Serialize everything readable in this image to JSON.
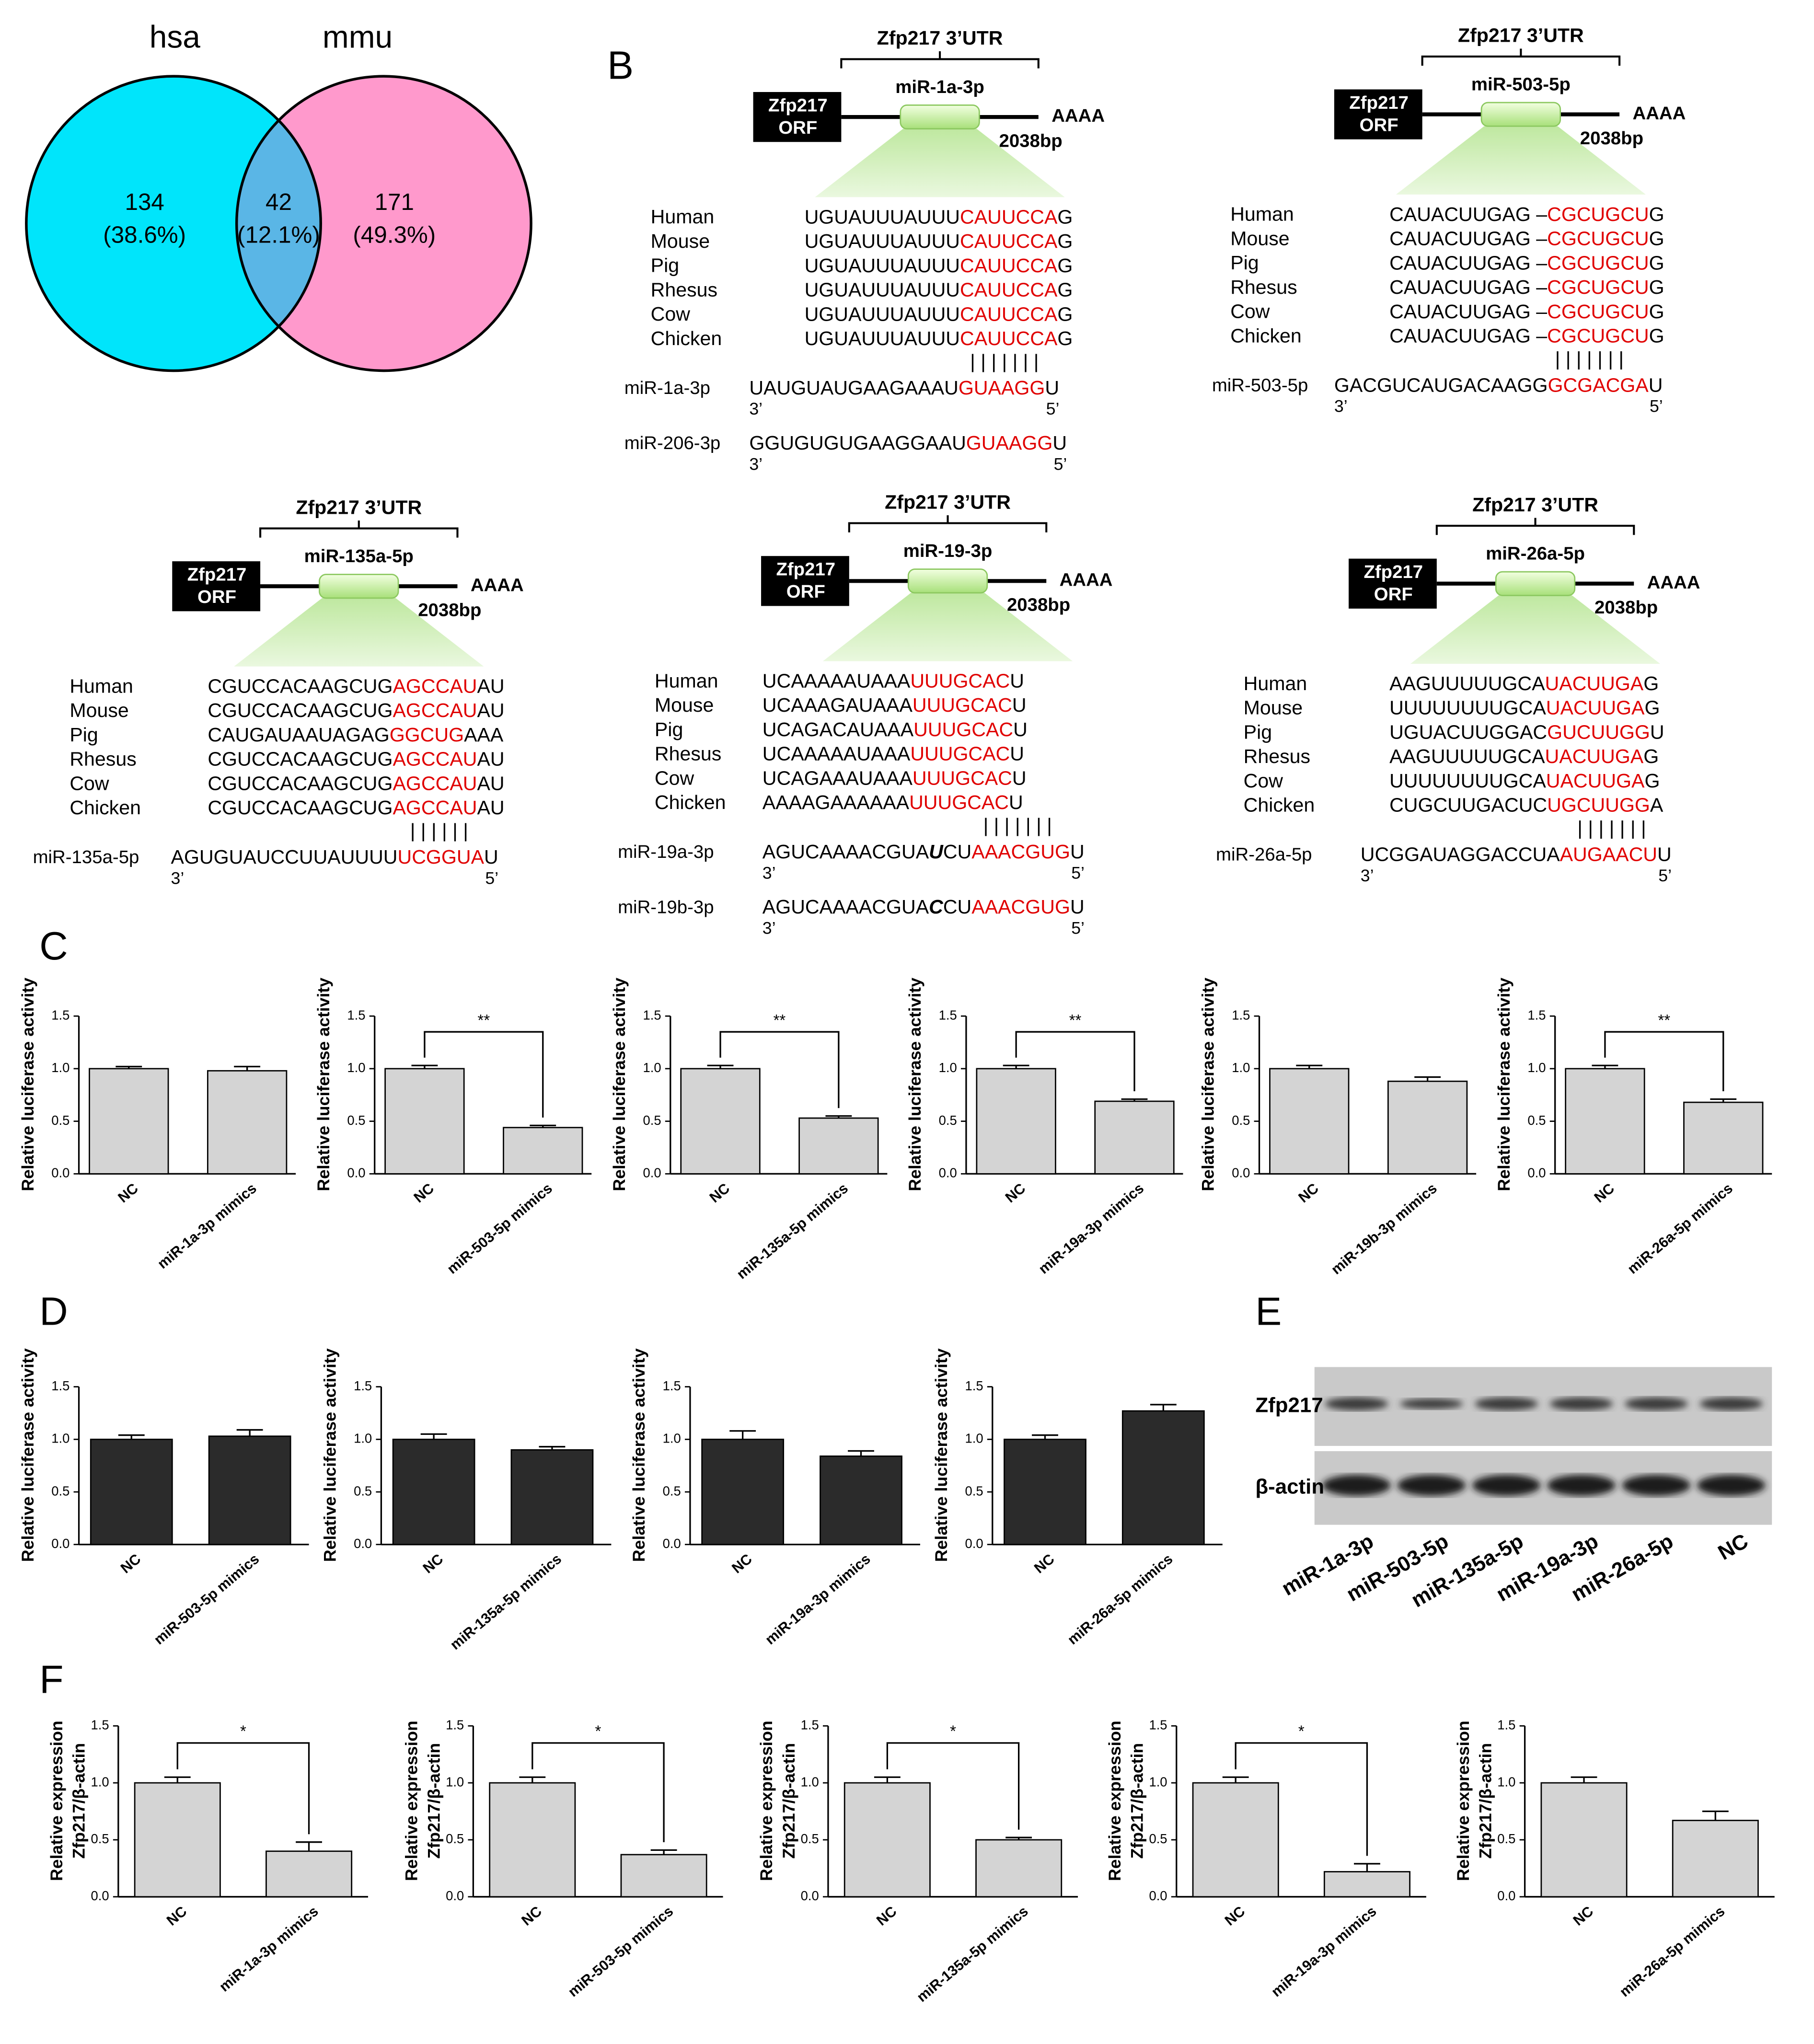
{
  "panel_labels": [
    "B",
    "C",
    "D",
    "E",
    "F"
  ],
  "venn": {
    "sets": [
      "hsa",
      "mmu"
    ],
    "counts": [
      "134",
      "42",
      "171"
    ],
    "percents": [
      "(38.6%)",
      "(12.1%)",
      "(49.3%)"
    ],
    "colors": [
      "#00e5fb",
      "#ff99cc",
      "#5ab6e6"
    ]
  },
  "diagrams": [
    {
      "utr": "Zfp217 3’UTR",
      "orf": [
        "Zfp217",
        "ORF"
      ],
      "site": "miR-1a-3p",
      "tail": "AAAA",
      "length": "2038bp",
      "species": [
        "Human",
        "Mouse",
        "Pig",
        "Rhesus",
        "Cow",
        "Chicken"
      ],
      "sequences": [
        {
          "parts": [
            "UGUAUUUAUUU",
            "CAUUCCA",
            "G"
          ],
          "styles": [
            "plain",
            "red",
            "plain"
          ]
        },
        {
          "parts": [
            "UGUAUUUAUUU",
            "CAUUCCA",
            "G"
          ],
          "styles": [
            "plain",
            "red",
            "plain"
          ]
        },
        {
          "parts": [
            "UGUAUUUAUUU",
            "CAUUCCA",
            "G"
          ],
          "styles": [
            "plain",
            "red",
            "plain"
          ]
        },
        {
          "parts": [
            "UGUAUUUAUUU",
            "CAUUCCA",
            "G"
          ],
          "styles": [
            "plain",
            "red",
            "plain"
          ]
        },
        {
          "parts": [
            "UGUAUUUAUUU",
            "CAUUCCA",
            "G"
          ],
          "styles": [
            "plain",
            "red",
            "plain"
          ]
        },
        {
          "parts": [
            "UGUAUUUAUUU",
            "CAUUCCA",
            "G"
          ],
          "styles": [
            "plain",
            "red",
            "plain"
          ]
        }
      ],
      "pairing": "| | | | | | |",
      "mirnas": [
        {
          "name": "miR-1a-3p",
          "parts": [
            "UAUGUAUGAAGAAAU",
            "GUAAGG",
            "U"
          ],
          "styles": [
            "plain",
            "red",
            "plain"
          ],
          "ends": [
            "3’",
            "5’"
          ]
        },
        {
          "name": "miR-206-3p",
          "parts": [
            "GGUGUGUGAAGGAAU",
            "GUAAGG",
            "U"
          ],
          "styles": [
            "plain",
            "red",
            "plain"
          ],
          "ends": [
            "3’",
            "5’"
          ]
        }
      ]
    },
    {
      "utr": "Zfp217 3’UTR",
      "orf": [
        "Zfp217",
        "ORF"
      ],
      "site": "miR-503-5p",
      "tail": "AAAA",
      "length": "2038bp",
      "species": [
        "Human",
        "Mouse",
        "Pig",
        "Rhesus",
        "Cow",
        "Chicken"
      ],
      "sequences": [
        {
          "parts": [
            "CAUACUUGAG –",
            "CGCUGCU",
            "G"
          ],
          "styles": [
            "plain",
            "red",
            "plain"
          ]
        },
        {
          "parts": [
            "CAUACUUGAG –",
            "CGCUGCU",
            "G"
          ],
          "styles": [
            "plain",
            "red",
            "plain"
          ]
        },
        {
          "parts": [
            "CAUACUUGAG –",
            "CGCUGCU",
            "G"
          ],
          "styles": [
            "plain",
            "red",
            "plain"
          ]
        },
        {
          "parts": [
            "CAUACUUGAG –",
            "CGCUGCU",
            "G"
          ],
          "styles": [
            "plain",
            "red",
            "plain"
          ]
        },
        {
          "parts": [
            "CAUACUUGAG –",
            "CGCUGCU",
            "G"
          ],
          "styles": [
            "plain",
            "red",
            "plain"
          ]
        },
        {
          "parts": [
            "CAUACUUGAG –",
            "CGCUGCU",
            "G"
          ],
          "styles": [
            "plain",
            "red",
            "plain"
          ]
        }
      ],
      "pairing": "| | | | | | |",
      "mirnas": [
        {
          "name": "miR-503-5p",
          "parts": [
            "GACGUCAUGACAAGG",
            "GCGACGA",
            "U"
          ],
          "styles": [
            "plain",
            "red",
            "plain"
          ],
          "ends": [
            "3’",
            "5’"
          ]
        }
      ]
    },
    {
      "utr": "Zfp217 3’UTR",
      "orf": [
        "Zfp217",
        "ORF"
      ],
      "site": "miR-135a-5p",
      "tail": "AAAA",
      "length": "2038bp",
      "species": [
        "Human",
        "Mouse",
        "Pig",
        "Rhesus",
        "Cow",
        "Chicken"
      ],
      "sequences": [
        {
          "parts": [
            "CGUCCACAAGCUG",
            "AGCCAU",
            "AU"
          ],
          "styles": [
            "plain",
            "red",
            "plain"
          ]
        },
        {
          "parts": [
            "CGUCCACAAGCUG",
            "AGCCAU",
            "AU"
          ],
          "styles": [
            "plain",
            "red",
            "plain"
          ]
        },
        {
          "parts": [
            "CAUGAUAAUAGAG",
            "GGCUG",
            "AAA"
          ],
          "styles": [
            "plain",
            "red",
            "plain"
          ]
        },
        {
          "parts": [
            "CGUCCACAAGCUG",
            "AGCCAU",
            "AU"
          ],
          "styles": [
            "plain",
            "red",
            "plain"
          ]
        },
        {
          "parts": [
            "CGUCCACAAGCUG",
            "AGCCAU",
            "AU"
          ],
          "styles": [
            "plain",
            "red",
            "plain"
          ]
        },
        {
          "parts": [
            "CGUCCACAAGCUG",
            "AGCCAU",
            "AU"
          ],
          "styles": [
            "plain",
            "red",
            "plain"
          ]
        }
      ],
      "pairing": "| | | | | |",
      "mirnas": [
        {
          "name": "miR-135a-5p",
          "parts": [
            "AGUGUAUCCUUAUUUU",
            "UCGGUA",
            "U"
          ],
          "styles": [
            "plain",
            "red",
            "plain"
          ],
          "ends": [
            "3’",
            "5’"
          ]
        }
      ]
    },
    {
      "utr": "Zfp217 3’UTR",
      "orf": [
        "Zfp217",
        "ORF"
      ],
      "site": "miR-19-3p",
      "tail": "AAAA",
      "length": "2038bp",
      "species": [
        "Human",
        "Mouse",
        "Pig",
        "Rhesus",
        "Cow",
        "Chicken"
      ],
      "sequences": [
        {
          "parts": [
            "UCAAAAAUAAA",
            "UUUGCAC",
            "U"
          ],
          "styles": [
            "plain",
            "red",
            "plain"
          ]
        },
        {
          "parts": [
            "UCAAAGAUAAA",
            "UUUGCAC",
            "U"
          ],
          "styles": [
            "plain",
            "red",
            "plain"
          ]
        },
        {
          "parts": [
            "UCAGACAUAAA",
            "UUUGCAC",
            "U"
          ],
          "styles": [
            "plain",
            "red",
            "plain"
          ]
        },
        {
          "parts": [
            "UCAAAAAUAAA",
            "UUUGCAC",
            "U"
          ],
          "styles": [
            "plain",
            "red",
            "plain"
          ]
        },
        {
          "parts": [
            "UCAGAAAUAAA",
            "UUUGCAC",
            "U"
          ],
          "styles": [
            "plain",
            "red",
            "plain"
          ]
        },
        {
          "parts": [
            "AAAAGAAAAAA",
            "UUUGCAC",
            "U"
          ],
          "styles": [
            "plain",
            "red",
            "plain"
          ]
        }
      ],
      "pairing": "| | | | | | |",
      "mirnas": [
        {
          "name": "miR-19a-3p",
          "parts": [
            "AGUCAAAACGUA",
            "U",
            "CU",
            "AAACGUG",
            "U"
          ],
          "styles": [
            "plain",
            "bold-italic",
            "plain",
            "red",
            "plain"
          ],
          "ends": [
            "3’",
            "5’"
          ]
        },
        {
          "name": "miR-19b-3p",
          "parts": [
            "AGUCAAAACGUA",
            "C",
            "CU",
            "AAACGUG",
            "U"
          ],
          "styles": [
            "plain",
            "bold-italic",
            "plain",
            "red",
            "plain"
          ],
          "ends": [
            "3’",
            "5’"
          ]
        }
      ]
    },
    {
      "utr": "Zfp217 3’UTR",
      "orf": [
        "Zfp217",
        "ORF"
      ],
      "site": "miR-26a-5p",
      "tail": "AAAA",
      "length": "2038bp",
      "species": [
        "Human",
        "Mouse",
        "Pig",
        "Rhesus",
        "Cow",
        "Chicken"
      ],
      "sequences": [
        {
          "parts": [
            "AAGUUUUUGCA",
            "UACUUGA",
            "G"
          ],
          "styles": [
            "plain",
            "red",
            "plain"
          ]
        },
        {
          "parts": [
            "UUUUUUUUGCA",
            "UACUUGA",
            "G"
          ],
          "styles": [
            "plain",
            "red",
            "plain"
          ]
        },
        {
          "parts": [
            "UGUACUUGGAC",
            "GUCUUGG",
            "U"
          ],
          "styles": [
            "plain",
            "red",
            "plain"
          ]
        },
        {
          "parts": [
            "AAGUUUUUGCA",
            "UACUUGA",
            "G"
          ],
          "styles": [
            "plain",
            "red",
            "plain"
          ]
        },
        {
          "parts": [
            "UUUUUUUUGCA",
            "UACUUGA",
            "G"
          ],
          "styles": [
            "plain",
            "red",
            "plain"
          ]
        },
        {
          "parts": [
            "CUGCUUGACUC",
            "UGCUUGG",
            "A"
          ],
          "styles": [
            "plain",
            "red",
            "plain"
          ]
        }
      ],
      "pairing": "| | | | | | |",
      "mirnas": [
        {
          "name": "miR-26a-5p",
          "parts": [
            "UCGGAUAGGACCUA",
            "AUGAACU",
            "U"
          ],
          "styles": [
            "plain",
            "red",
            "plain"
          ],
          "ends": [
            "3’",
            "5’"
          ]
        }
      ]
    }
  ],
  "blot": {
    "rows": [
      "Zfp217",
      "β-actin"
    ],
    "lanes": [
      "miR-1a-3p",
      "miR-503-5p",
      "miR-135a-5p",
      "miR-19a-3p",
      "miR-26a-5p",
      "NC"
    ]
  },
  "chart_data": [
    {
      "type": "bar",
      "ylabel": [
        "Relative luciferase activity"
      ],
      "categories": [
        "NC",
        "miR-1a-3p mimics"
      ],
      "values": [
        1.0,
        0.98
      ],
      "errors": [
        0.02,
        0.04
      ],
      "color": "#d4d4d4",
      "ylim": [
        0,
        1.5
      ],
      "yticks": [
        {
          "value": 0,
          "label": "0.0"
        },
        0.5,
        {
          "value": 1,
          "label": "1.0"
        },
        1.5
      ]
    },
    {
      "type": "bar",
      "ylabel": [
        "Relative luciferase activity"
      ],
      "categories": [
        "NC",
        "miR-503-5p mimics"
      ],
      "values": [
        1.0,
        0.44
      ],
      "errors": [
        0.03,
        0.02
      ],
      "color": "#d4d4d4",
      "ylim": [
        0,
        1.5
      ],
      "yticks": [
        {
          "value": 0,
          "label": "0.0"
        },
        0.5,
        {
          "value": 1,
          "label": "1.0"
        },
        1.5
      ],
      "significance": "**"
    },
    {
      "type": "bar",
      "ylabel": [
        "Relative luciferase activity"
      ],
      "categories": [
        "NC",
        "miR-135a-5p mimics"
      ],
      "values": [
        1.0,
        0.53
      ],
      "errors": [
        0.03,
        0.02
      ],
      "color": "#d4d4d4",
      "ylim": [
        0,
        1.5
      ],
      "yticks": [
        {
          "value": 0,
          "label": "0.0"
        },
        0.5,
        {
          "value": 1,
          "label": "1.0"
        },
        1.5
      ],
      "significance": "**"
    },
    {
      "type": "bar",
      "ylabel": [
        "Relative luciferase activity"
      ],
      "categories": [
        "NC",
        "miR-19a-3p mimics"
      ],
      "values": [
        1.0,
        0.69
      ],
      "errors": [
        0.03,
        0.02
      ],
      "color": "#d4d4d4",
      "ylim": [
        0,
        1.5
      ],
      "yticks": [
        {
          "value": 0,
          "label": "0.0"
        },
        0.5,
        {
          "value": 1,
          "label": "1.0"
        },
        1.5
      ],
      "significance": "**"
    },
    {
      "type": "bar",
      "ylabel": [
        "Relative luciferase activity"
      ],
      "categories": [
        "NC",
        "miR-19b-3p mimics"
      ],
      "values": [
        1.0,
        0.88
      ],
      "errors": [
        0.03,
        0.04
      ],
      "color": "#d4d4d4",
      "ylim": [
        0,
        1.5
      ],
      "yticks": [
        {
          "value": 0,
          "label": "0.0"
        },
        0.5,
        {
          "value": 1,
          "label": "1.0"
        },
        1.5
      ]
    },
    {
      "type": "bar",
      "ylabel": [
        "Relative luciferase activity"
      ],
      "categories": [
        "NC",
        "miR-26a-5p mimics"
      ],
      "values": [
        1.0,
        0.68
      ],
      "errors": [
        0.03,
        0.03
      ],
      "color": "#d4d4d4",
      "ylim": [
        0,
        1.5
      ],
      "yticks": [
        {
          "value": 0,
          "label": "0.0"
        },
        0.5,
        {
          "value": 1,
          "label": "1.0"
        },
        1.5
      ],
      "significance": "**"
    },
    {
      "type": "bar",
      "ylabel": [
        "Relative luciferase activity"
      ],
      "categories": [
        "NC",
        "miR-503-5p mimics"
      ],
      "values": [
        1.0,
        1.03
      ],
      "errors": [
        0.04,
        0.06
      ],
      "color": "#2b2b2b",
      "ylim": [
        0,
        1.5
      ],
      "yticks": [
        {
          "value": 0,
          "label": "0.0"
        },
        0.5,
        {
          "value": 1,
          "label": "1.0"
        },
        1.5
      ]
    },
    {
      "type": "bar",
      "ylabel": [
        "Relative luciferase activity"
      ],
      "categories": [
        "NC",
        "miR-135a-5p mimics"
      ],
      "values": [
        1.0,
        0.9
      ],
      "errors": [
        0.05,
        0.03
      ],
      "color": "#2b2b2b",
      "ylim": [
        0,
        1.5
      ],
      "yticks": [
        {
          "value": 0,
          "label": "0.0"
        },
        0.5,
        {
          "value": 1,
          "label": "1.0"
        },
        1.5
      ]
    },
    {
      "type": "bar",
      "ylabel": [
        "Relative luciferase activity"
      ],
      "categories": [
        "NC",
        "miR-19a-3p mimics"
      ],
      "values": [
        1.0,
        0.84
      ],
      "errors": [
        0.08,
        0.05
      ],
      "color": "#2b2b2b",
      "ylim": [
        0,
        1.5
      ],
      "yticks": [
        {
          "value": 0,
          "label": "0.0"
        },
        0.5,
        {
          "value": 1,
          "label": "1.0"
        },
        1.5
      ]
    },
    {
      "type": "bar",
      "ylabel": [
        "Relative luciferase activity"
      ],
      "categories": [
        "NC",
        "miR-26a-5p mimics"
      ],
      "values": [
        1.0,
        1.27
      ],
      "errors": [
        0.04,
        0.06
      ],
      "color": "#2b2b2b",
      "ylim": [
        0,
        1.5
      ],
      "yticks": [
        {
          "value": 0,
          "label": "0.0"
        },
        0.5,
        {
          "value": 1,
          "label": "1.0"
        },
        1.5
      ]
    },
    {
      "type": "bar",
      "ylabel": [
        "Relative expression",
        "Zfp217/β-actin"
      ],
      "categories": [
        "NC",
        "miR-1a-3p mimics"
      ],
      "values": [
        1.0,
        0.4
      ],
      "errors": [
        0.05,
        0.08
      ],
      "color": "#d4d4d4",
      "ylim": [
        0,
        1.5
      ],
      "yticks": [
        {
          "value": 0,
          "label": "0.0"
        },
        0.5,
        {
          "value": 1,
          "label": "1.0"
        },
        1.5
      ],
      "significance": "*"
    },
    {
      "type": "bar",
      "ylabel": [
        "Relative expression",
        "Zfp217/β-actin"
      ],
      "categories": [
        "NC",
        "miR-503-5p mimics"
      ],
      "values": [
        1.0,
        0.37
      ],
      "errors": [
        0.05,
        0.04
      ],
      "color": "#d4d4d4",
      "ylim": [
        0,
        1.5
      ],
      "yticks": [
        {
          "value": 0,
          "label": "0.0"
        },
        0.5,
        {
          "value": 1,
          "label": "1.0"
        },
        1.5
      ],
      "significance": "*"
    },
    {
      "type": "bar",
      "ylabel": [
        "Relative expression",
        "Zfp217/β-actin"
      ],
      "categories": [
        "NC",
        "miR-135a-5p mimics"
      ],
      "values": [
        1.0,
        0.5
      ],
      "errors": [
        0.05,
        0.02
      ],
      "color": "#d4d4d4",
      "ylim": [
        0,
        1.5
      ],
      "yticks": [
        {
          "value": 0,
          "label": "0.0"
        },
        0.5,
        {
          "value": 1,
          "label": "1.0"
        },
        1.5
      ],
      "significance": "*"
    },
    {
      "type": "bar",
      "ylabel": [
        "Relative expression",
        "Zfp217/β-actin"
      ],
      "categories": [
        "NC",
        "miR-19a-3p mimics"
      ],
      "values": [
        1.0,
        0.22
      ],
      "errors": [
        0.05,
        0.07
      ],
      "color": "#d4d4d4",
      "ylim": [
        0,
        1.5
      ],
      "yticks": [
        {
          "value": 0,
          "label": "0.0"
        },
        0.5,
        {
          "value": 1,
          "label": "1.0"
        },
        1.5
      ],
      "significance": "*"
    },
    {
      "type": "bar",
      "ylabel": [
        "Relative expression",
        "Zfp217/β-actin"
      ],
      "categories": [
        "NC",
        "miR-26a-5p mimics"
      ],
      "values": [
        1.0,
        0.67
      ],
      "errors": [
        0.05,
        0.08
      ],
      "color": "#d4d4d4",
      "ylim": [
        0,
        1.5
      ],
      "yticks": [
        {
          "value": 0,
          "label": "0.0"
        },
        0.5,
        {
          "value": 1,
          "label": "1.0"
        },
        1.5
      ]
    }
  ]
}
